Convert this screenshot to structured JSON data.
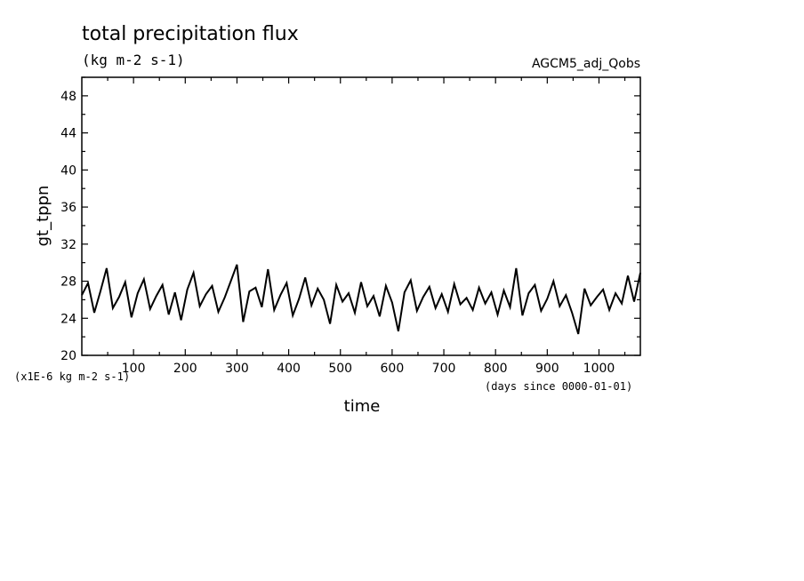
{
  "chart_data": {
    "type": "line",
    "title": "total precipitation flux",
    "subtitle": "(kg m-2 s-1)",
    "run_label": "AGCM5_adj_Qobs",
    "xlabel": "time",
    "x_unit_note": "(days since 0000-01-01)",
    "ylabel": "gt_tppn",
    "y_scale_note": "(x1E-6 kg m-2 s-1)",
    "xlim": [
      0,
      1080
    ],
    "ylim": [
      20,
      50
    ],
    "x_ticks": [
      100,
      200,
      300,
      400,
      500,
      600,
      700,
      800,
      900,
      1000
    ],
    "y_ticks": [
      20,
      24,
      28,
      32,
      36,
      40,
      44,
      48
    ],
    "grid": false,
    "series": [
      {
        "color": "#000000",
        "x": [
          0,
          12,
          24,
          36,
          48,
          60,
          72,
          84,
          96,
          108,
          120,
          132,
          144,
          156,
          168,
          180,
          192,
          204,
          216,
          228,
          240,
          252,
          264,
          276,
          288,
          300,
          312,
          324,
          336,
          348,
          360,
          372,
          384,
          396,
          408,
          420,
          432,
          444,
          456,
          468,
          480,
          492,
          504,
          516,
          528,
          540,
          552,
          564,
          576,
          588,
          600,
          612,
          624,
          636,
          648,
          660,
          672,
          684,
          696,
          708,
          720,
          732,
          744,
          756,
          768,
          780,
          792,
          804,
          816,
          828,
          840,
          852,
          864,
          876,
          888,
          900,
          912,
          924,
          936,
          948,
          960,
          972,
          984,
          996,
          1008,
          1020,
          1032,
          1044,
          1056,
          1068,
          1080
        ],
        "y": [
          26.5,
          27.8,
          24.6,
          26.9,
          29.4,
          25.1,
          26.3,
          27.9,
          24.1,
          26.7,
          28.2,
          25.0,
          26.4,
          27.6,
          24.4,
          26.8,
          23.8,
          27.1,
          28.9,
          25.3,
          26.6,
          27.5,
          24.7,
          26.2,
          28.0,
          29.8,
          23.6,
          26.9,
          27.3,
          25.2,
          29.3,
          24.9,
          26.5,
          27.8,
          24.3,
          26.1,
          28.4,
          25.4,
          27.2,
          26.0,
          23.4,
          27.6,
          25.8,
          26.7,
          24.6,
          27.9,
          25.3,
          26.4,
          24.2,
          27.5,
          25.7,
          22.6,
          26.8,
          28.1,
          24.8,
          26.3,
          27.4,
          25.1,
          26.6,
          24.7,
          27.7,
          25.5,
          26.2,
          24.9,
          27.3,
          25.6,
          26.8,
          24.4,
          27.0,
          25.2,
          29.4,
          24.3,
          26.7,
          27.6,
          24.8,
          26.1,
          28.0,
          25.3,
          26.5,
          24.6,
          22.3,
          27.2,
          25.4,
          26.3,
          27.1,
          24.9,
          26.7,
          25.6,
          28.6,
          25.8,
          28.9
        ]
      }
    ]
  }
}
